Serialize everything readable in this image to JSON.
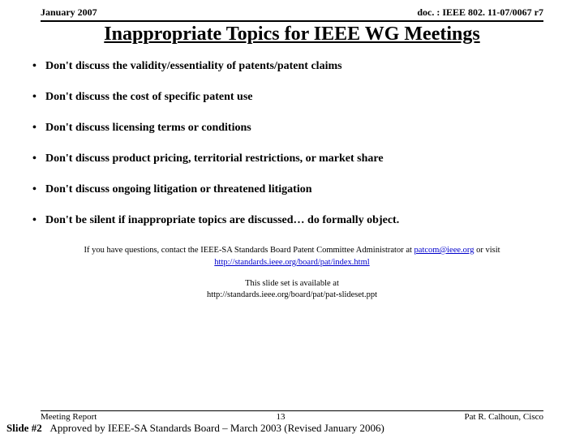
{
  "header": {
    "date": "January 2007",
    "docref": "doc. : IEEE 802. 11-07/0067 r7"
  },
  "title": "Inappropriate Topics for IEEE WG Meetings",
  "bullets": [
    "Don't discuss the validity/essentiality of patents/patent claims",
    "Don't discuss the cost of specific patent use",
    "Don't discuss licensing terms or conditions",
    "Don't discuss product pricing, territorial restrictions, or market share",
    "Don't discuss ongoing litigation or threatened litigation",
    "Don't be silent if inappropriate topics are discussed… do formally object."
  ],
  "contact": {
    "prefix": "If you have questions, contact the IEEE-SA Standards Board Patent Committee Administrator at ",
    "email": "patcom@ieee.org",
    "middle": " or visit ",
    "url": "http://standards.ieee.org/board/pat/index.html"
  },
  "slideset": {
    "line1": "This slide set is available at",
    "line2": "http://standards.ieee.org/board/pat/pat-slideset.ppt"
  },
  "footer": {
    "report": "Meeting Report",
    "pagenum": "13",
    "author": "Pat R. Calhoun, Cisco",
    "slide": "Slide #2",
    "approval": "Approved by IEEE-SA Standards Board – March 2003 (Revised January 2006)"
  },
  "colors": {
    "link": "#0000cc",
    "text": "#000000",
    "bg": "#ffffff"
  }
}
